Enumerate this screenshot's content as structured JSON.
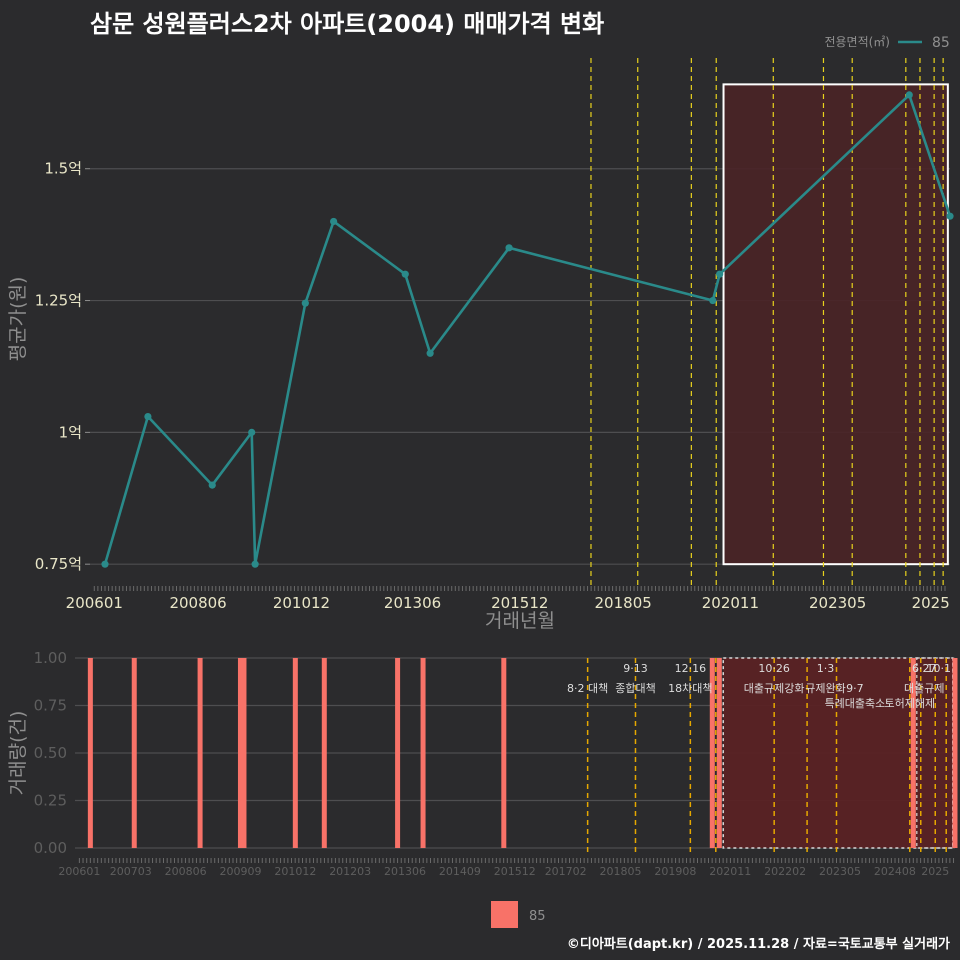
{
  "page": {
    "title": "삼문 성원플러스2차 아파트(2004) 매매가격 변화",
    "credit": "©디아파트(dapt.kr) / 2025.11.28 / 자료=국토교통부 실거래가"
  },
  "colors": {
    "background": "#2b2b2d",
    "price_line": "#2a8a8a",
    "volume_bar": "#f87268",
    "policy_line_top": "#e8d21d",
    "policy_line_bottom": "#e6a800",
    "highlight_fill": "#4a2426",
    "grid": "#4e4e50",
    "tick_text_top": "#e9e6c8",
    "tick_text_bottom": "#5e5e5e",
    "axis_title": "#8f8f8f"
  },
  "chart_data": [
    {
      "id": "price",
      "type": "line",
      "ylabel": "평균가(원)",
      "xlabel": "거래년월",
      "ylim": [
        0.72,
        1.71
      ],
      "xlim": [
        2005.9,
        2025.95
      ],
      "yticks": [
        0.75,
        1.0,
        1.25,
        1.5
      ],
      "ytick_labels": [
        "0.75억",
        "1억",
        "1.25억",
        "1.5억"
      ],
      "xticks": [
        2006.0,
        2008.42,
        2010.83,
        2013.42,
        2015.92,
        2018.33,
        2020.83,
        2023.33,
        2025.5
      ],
      "xtick_labels": [
        "200601",
        "200806",
        "201012",
        "201306",
        "201512",
        "201805",
        "202011",
        "202305",
        "2025"
      ],
      "legend_title": "전용면적(㎡)",
      "series": [
        {
          "name": "85",
          "x": [
            2006.25,
            2007.25,
            2008.75,
            2009.67,
            2009.75,
            2010.92,
            2011.58,
            2013.25,
            2013.83,
            2015.67,
            2020.42,
            2020.58,
            2025.0,
            2025.95
          ],
          "y": [
            0.75,
            1.03,
            0.9,
            1.0,
            0.75,
            1.245,
            1.4,
            1.3,
            1.15,
            1.35,
            1.25,
            1.3,
            1.64,
            1.41
          ]
        }
      ],
      "policy_lines_x": [
        2017.58,
        2018.67,
        2019.92,
        2020.5,
        2021.83,
        2023.0,
        2023.67,
        2024.92,
        2025.25,
        2025.58,
        2025.79
      ],
      "highlight": {
        "x_start": 2020.67,
        "x_end": 2025.9,
        "y_start": 0.75,
        "y_end": 1.66
      }
    },
    {
      "id": "volume",
      "type": "bar",
      "ylabel": "거래량(건)",
      "ylim": [
        0,
        1.0
      ],
      "xlim": [
        2005.9,
        2025.95
      ],
      "yticks": [
        0.0,
        0.25,
        0.5,
        0.75,
        1.0
      ],
      "ytick_labels": [
        "0.00",
        "0.25",
        "0.50",
        "0.75",
        "1.00"
      ],
      "xticks": [
        2006.0,
        2007.17,
        2008.42,
        2009.67,
        2010.92,
        2012.17,
        2013.42,
        2014.67,
        2015.92,
        2017.08,
        2018.33,
        2019.58,
        2020.83,
        2022.08,
        2023.33,
        2024.58,
        2025.5
      ],
      "xtick_labels": [
        "200601",
        "200703",
        "200806",
        "200909",
        "201012",
        "201203",
        "201306",
        "201409",
        "201512",
        "201702",
        "201805",
        "201908",
        "202011",
        "202202",
        "202305",
        "202408",
        "2025"
      ],
      "series": [
        {
          "name": "85",
          "x": [
            2006.25,
            2007.25,
            2008.75,
            2009.67,
            2009.75,
            2010.92,
            2011.58,
            2013.25,
            2013.83,
            2015.67,
            2020.42,
            2020.58,
            2025.0,
            2025.95
          ],
          "values": [
            1,
            1,
            1,
            1,
            1,
            1,
            1,
            1,
            1,
            1,
            1,
            1,
            1,
            1
          ]
        }
      ],
      "policy_lines_x": [
        2017.58,
        2018.67,
        2019.92,
        2020.5,
        2021.83,
        2022.58,
        2023.25,
        2024.92,
        2025.17,
        2025.5,
        2025.75
      ],
      "highlight": {
        "x_start": 2020.67,
        "x_end": 2025.9
      },
      "highlight_inner_x_start": 2025.08,
      "annotations": [
        {
          "x": 2017.58,
          "row": 1,
          "text": "8·2 대책"
        },
        {
          "x": 2018.67,
          "row": 0,
          "text": "9·13"
        },
        {
          "x": 2018.67,
          "row": 1,
          "text": "종합대책"
        },
        {
          "x": 2019.92,
          "row": 0,
          "text": "12·16"
        },
        {
          "x": 2019.92,
          "row": 1,
          "text": "18차대책"
        },
        {
          "x": 2021.83,
          "row": 0,
          "text": "10·26"
        },
        {
          "x": 2021.83,
          "row": 1,
          "text": "대출규제강화"
        },
        {
          "x": 2023.0,
          "row": 0,
          "text": "1·3"
        },
        {
          "x": 2023.0,
          "row": 1,
          "text": "규제완화"
        },
        {
          "x": 2023.67,
          "row": 1,
          "text": "9·7"
        },
        {
          "x": 2023.67,
          "row": 2,
          "text": "특례대출축소"
        },
        {
          "x": 2024.92,
          "row": 2,
          "text": "토허제해제"
        },
        {
          "x": 2025.25,
          "row": 0,
          "text": "6·27"
        },
        {
          "x": 2025.25,
          "row": 1,
          "text": "대출규제"
        },
        {
          "x": 2025.58,
          "row": 0,
          "text": "10·1"
        }
      ],
      "legend_label": "85"
    }
  ]
}
